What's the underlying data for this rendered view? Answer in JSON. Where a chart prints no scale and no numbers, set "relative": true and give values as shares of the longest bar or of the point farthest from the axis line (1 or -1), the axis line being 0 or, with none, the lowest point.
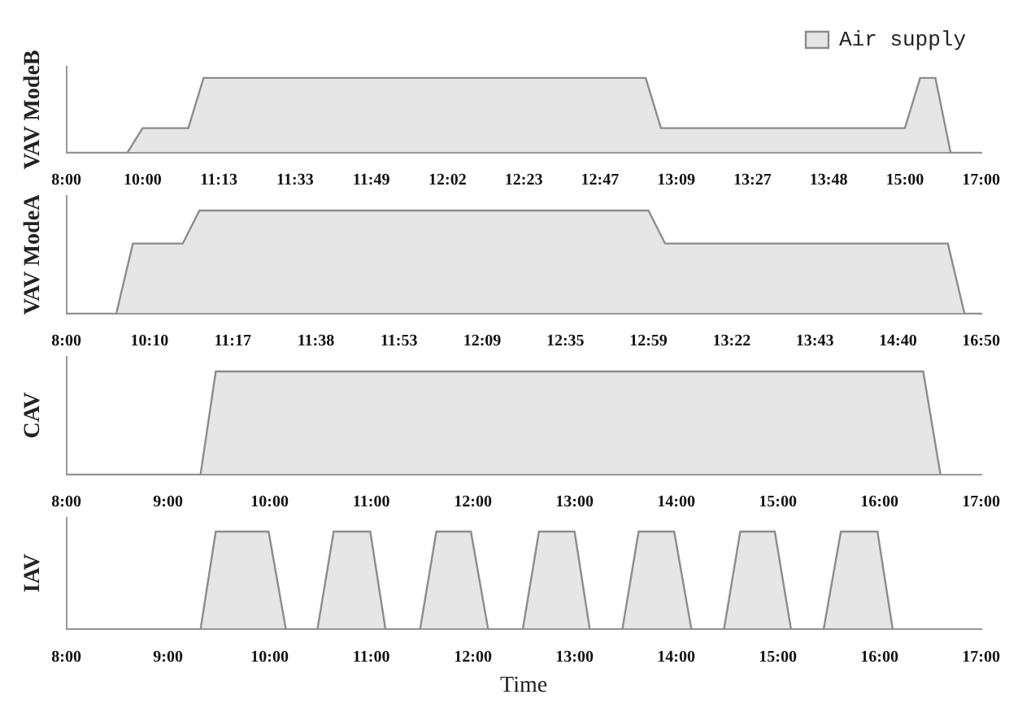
{
  "chart_data": [
    {
      "type": "area",
      "ylabel": "VAV ModeB",
      "legend": "top right",
      "relative": true,
      "tick_labels": "x",
      "categories": [
        "8:00",
        null,
        null,
        null,
        null,
        "10:00",
        null,
        null,
        null,
        null,
        "11:13",
        null,
        null,
        null,
        null,
        "11:33",
        null,
        null,
        null,
        null,
        "11:49",
        null,
        null,
        null,
        null,
        "12:02",
        null,
        null,
        null,
        null,
        "12:23",
        null,
        null,
        null,
        null,
        "12:47",
        null,
        null,
        null,
        null,
        "13:09",
        null,
        null,
        null,
        null,
        "13:27",
        null,
        null,
        null,
        null,
        "13:48",
        null,
        null,
        null,
        null,
        "15:00",
        null,
        null,
        null,
        null,
        "17:00"
      ],
      "series": [
        {
          "name": "Air supply",
          "color": "#8c8c8c",
          "values": [
            0,
            0,
            0,
            0,
            0,
            0.33,
            0.33,
            0.33,
            0.33,
            1,
            1,
            1,
            1,
            1,
            1,
            1,
            1,
            1,
            1,
            1,
            1,
            1,
            1,
            1,
            1,
            1,
            1,
            1,
            1,
            1,
            1,
            1,
            1,
            1,
            1,
            1,
            1,
            1,
            1,
            0.33,
            0.33,
            0.33,
            0.33,
            0.33,
            0.33,
            0.33,
            0.33,
            0.33,
            0.33,
            0.33,
            0.33,
            0.33,
            0.33,
            0.33,
            0.33,
            0.33,
            1,
            1,
            0,
            0,
            0
          ]
        }
      ]
    },
    {
      "type": "area",
      "ylabel": "VAV ModeA",
      "relative": true,
      "tick_labels": "x",
      "categories": [
        "8:00",
        null,
        null,
        null,
        null,
        "10:10",
        null,
        null,
        null,
        null,
        "11:17",
        null,
        null,
        null,
        null,
        "11:38",
        null,
        null,
        null,
        null,
        "11:53",
        null,
        null,
        null,
        null,
        "12:09",
        null,
        null,
        null,
        null,
        "12:35",
        null,
        null,
        null,
        null,
        "12:59",
        null,
        null,
        null,
        null,
        "13:22",
        null,
        null,
        null,
        null,
        "13:43",
        null,
        null,
        null,
        null,
        "14:40",
        null,
        null,
        null,
        null,
        "16:50"
      ],
      "series": [
        {
          "color": "#8c8c8c",
          "values": [
            0,
            0,
            0,
            0,
            0.68,
            0.68,
            0.68,
            0.68,
            1,
            1,
            1,
            1,
            1,
            1,
            1,
            1,
            1,
            1,
            1,
            1,
            1,
            1,
            1,
            1,
            1,
            1,
            1,
            1,
            1,
            1,
            1,
            1,
            1,
            1,
            1,
            1,
            0.68,
            0.68,
            0.68,
            0.68,
            0.68,
            0.68,
            0.68,
            0.68,
            0.68,
            0.68,
            0.68,
            0.68,
            0.68,
            0.68,
            0.68,
            0.68,
            0.68,
            0.68,
            0,
            0
          ]
        }
      ]
    },
    {
      "type": "area",
      "ylabel": "CAV",
      "relative": true,
      "tick_labels": "x",
      "xlim": [
        8,
        17
      ],
      "xticks": [
        {
          "value": 8,
          "label": "8:00"
        },
        {
          "value": 9,
          "label": "9:00"
        },
        {
          "value": 10,
          "label": "10:00"
        },
        {
          "value": 11,
          "label": "11:00"
        },
        {
          "value": 12,
          "label": "12:00"
        },
        {
          "value": 13,
          "label": "13:00"
        },
        {
          "value": 14,
          "label": "14:00"
        },
        {
          "value": 15,
          "label": "15:00"
        },
        {
          "value": 16,
          "label": "16:00"
        },
        {
          "value": 17,
          "label": "17:00"
        }
      ],
      "series": [
        {
          "color": "#8c8c8c",
          "x": [
            8,
            9.32,
            9.47,
            16.43,
            16.6
          ],
          "values": [
            0,
            0,
            1,
            1,
            0
          ]
        }
      ]
    },
    {
      "type": "area",
      "ylabel": "IAV",
      "xlabel": "Time",
      "relative": true,
      "tick_labels": "x",
      "xlim": [
        8,
        17
      ],
      "xticks": [
        {
          "value": 8,
          "label": "8:00"
        },
        {
          "value": 9,
          "label": "9:00"
        },
        {
          "value": 10,
          "label": "10:00"
        },
        {
          "value": 11,
          "label": "11:00"
        },
        {
          "value": 12,
          "label": "12:00"
        },
        {
          "value": 13,
          "label": "13:00"
        },
        {
          "value": 14,
          "label": "14:00"
        },
        {
          "value": 15,
          "label": "15:00"
        },
        {
          "value": 16,
          "label": "16:00"
        },
        {
          "value": 17,
          "label": "17:00"
        }
      ],
      "series": [
        {
          "color": "#8c8c8c",
          "x": [
            8.05,
            9.32,
            9.47,
            9.99,
            10.16,
            10.47,
            10.63,
            10.99,
            11.14,
            11.48,
            11.64,
            11.98,
            12.15,
            12.49,
            12.65,
            13.0,
            13.15,
            13.47,
            13.63,
            13.98,
            14.15,
            14.47,
            14.63,
            14.97,
            15.13,
            15.45,
            15.62,
            15.98,
            16.13
          ],
          "values": [
            0,
            0,
            1,
            1,
            0,
            0,
            1,
            1,
            0,
            0,
            1,
            1,
            0,
            0,
            1,
            1,
            0,
            0,
            1,
            1,
            0,
            0,
            1,
            1,
            0,
            0,
            1,
            1,
            0
          ]
        }
      ]
    }
  ]
}
